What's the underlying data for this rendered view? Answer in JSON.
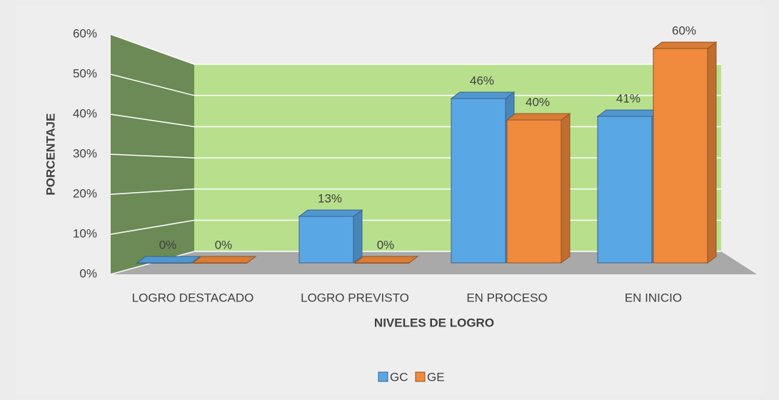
{
  "chart_data": {
    "type": "bar3d",
    "categories": [
      "LOGRO DESTACADO",
      "LOGRO PREVISTO",
      "EN PROCESO",
      "EN INICIO"
    ],
    "series": [
      {
        "name": "GC",
        "color": "#5aa7e6",
        "values": [
          0,
          13,
          46,
          41
        ],
        "value_labels": [
          "0%",
          "13%",
          "46%",
          "41%"
        ]
      },
      {
        "name": "GE",
        "color": "#f08a3c",
        "values": [
          0,
          0,
          40,
          60
        ],
        "value_labels": [
          "0%",
          "0%",
          "40%",
          "60%"
        ]
      }
    ],
    "xlabel": "NIVELES DE LOGRO",
    "ylabel": "PORCENTAJE",
    "ylim": [
      0,
      60
    ],
    "yticks": [
      {
        "value": 0,
        "label": "0%"
      },
      {
        "value": 10,
        "label": "10%"
      },
      {
        "value": 20,
        "label": "20%"
      },
      {
        "value": 30,
        "label": "30%"
      },
      {
        "value": 40,
        "label": "40%"
      },
      {
        "value": 50,
        "label": "50%"
      },
      {
        "value": 60,
        "label": "60%"
      }
    ],
    "grid": true,
    "legend": "bottom"
  }
}
